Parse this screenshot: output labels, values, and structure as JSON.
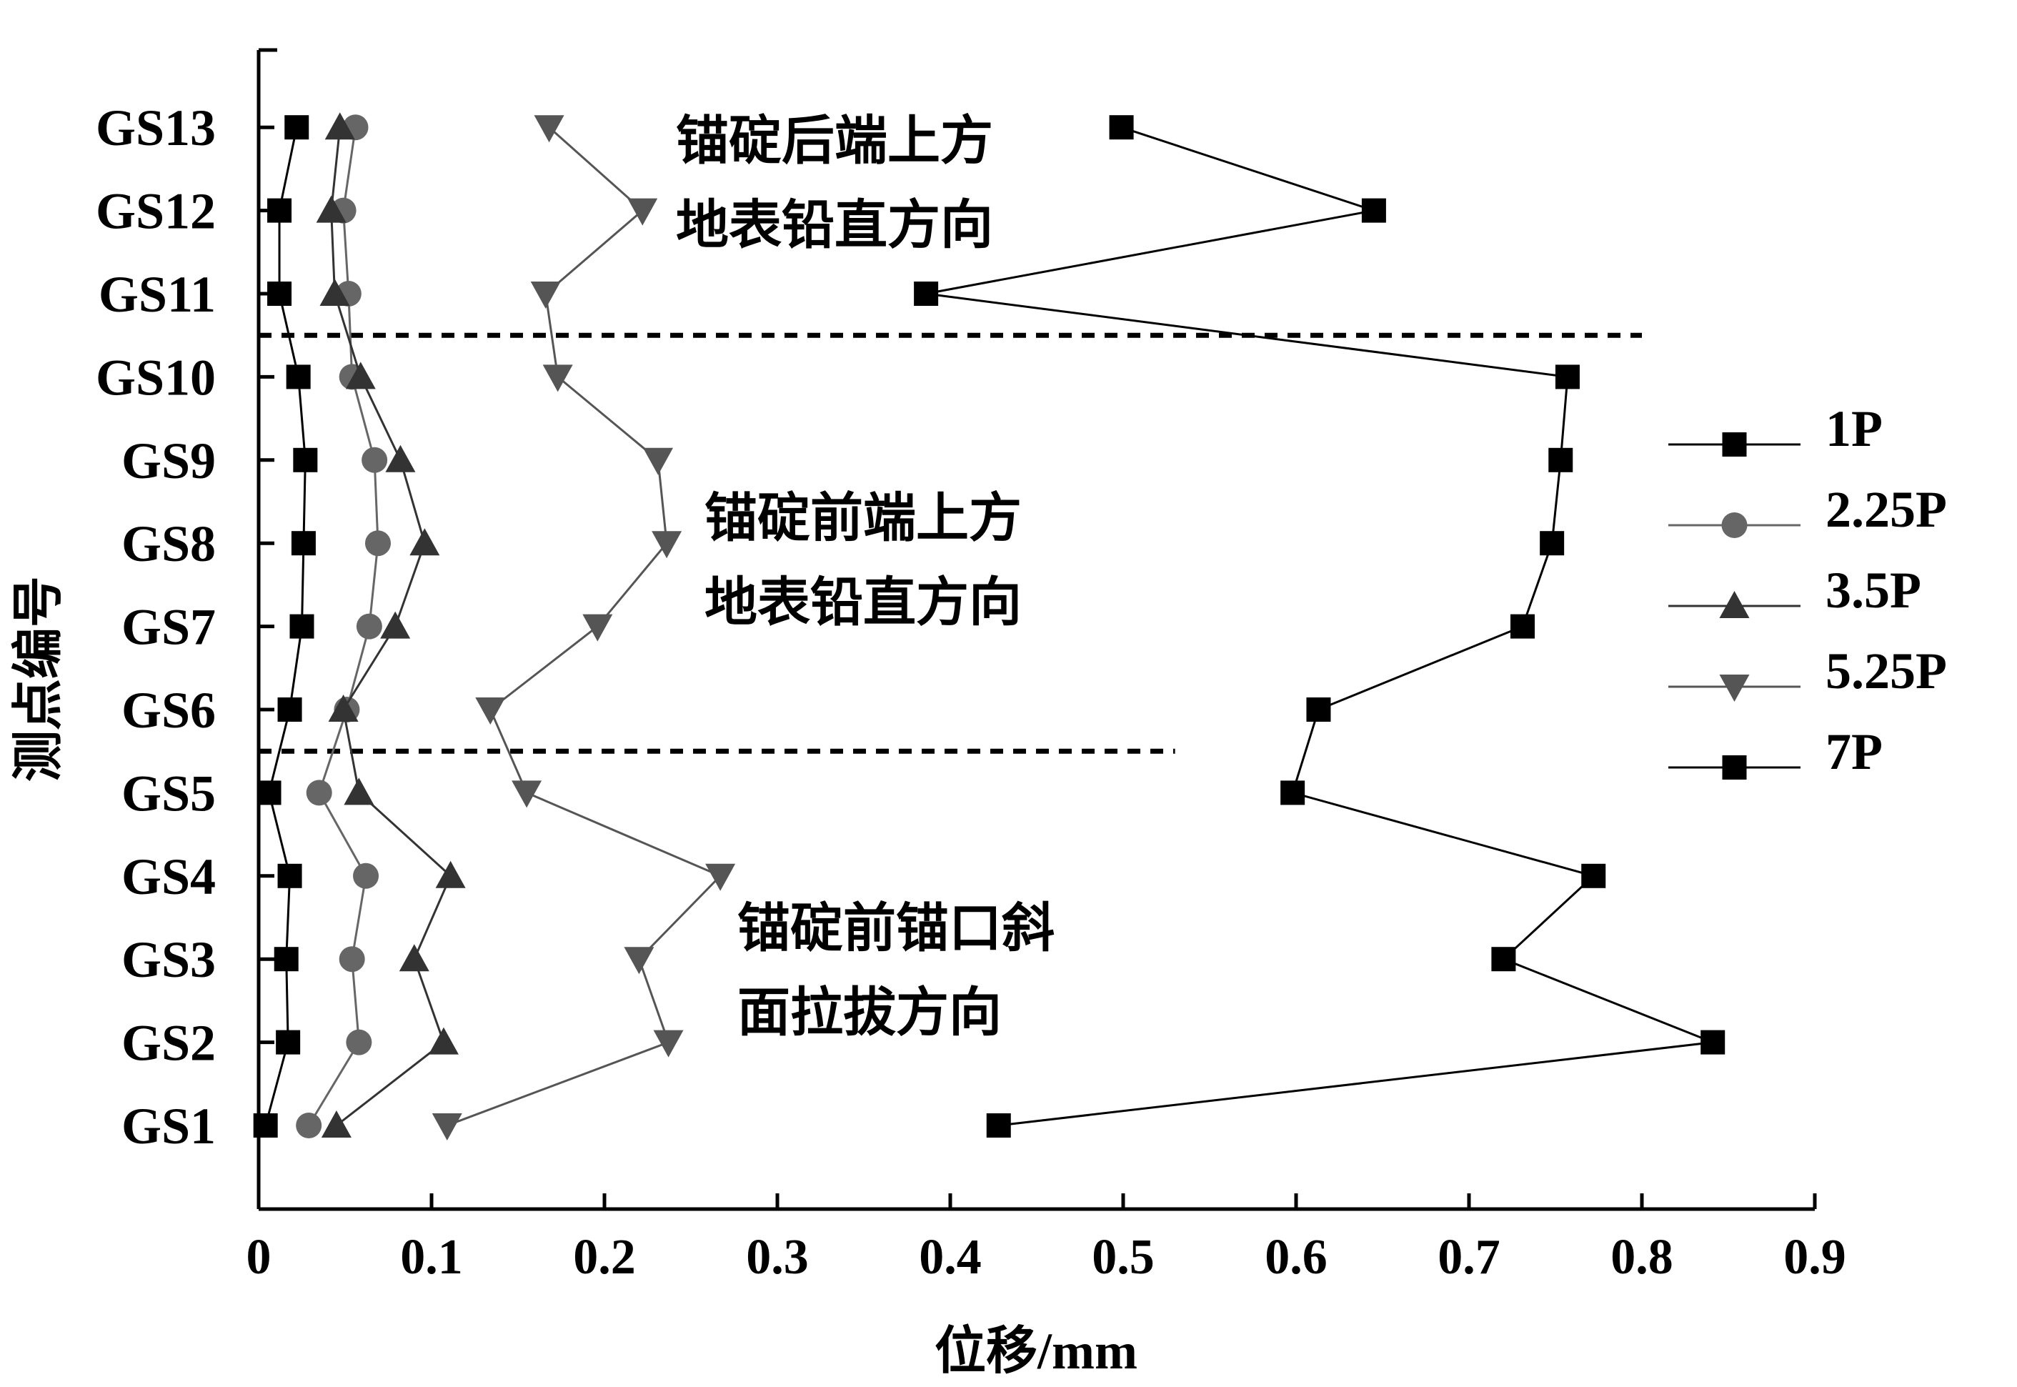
{
  "chart_data": {
    "type": "line",
    "xlabel": "位移/mm",
    "ylabel": "测点编号",
    "xlim": [
      0,
      0.9
    ],
    "x_ticks": [
      0,
      0.1,
      0.2,
      0.3,
      0.4,
      0.5,
      0.6,
      0.7,
      0.8,
      0.9
    ],
    "x_tick_labels": [
      "0",
      "0.1",
      "0.2",
      "0.3",
      "0.4",
      "0.5",
      "0.6",
      "0.7",
      "0.8",
      "0.9"
    ],
    "categories": [
      "GS1",
      "GS2",
      "GS3",
      "GS4",
      "GS5",
      "GS6",
      "GS7",
      "GS8",
      "GS9",
      "GS10",
      "GS11",
      "GS12",
      "GS13"
    ],
    "grid": false,
    "legend_position": "right",
    "series": [
      {
        "name": "1P",
        "marker": "square",
        "color": "#000000",
        "values": [
          0.004,
          0.017,
          0.016,
          0.018,
          0.006,
          0.018,
          0.025,
          0.026,
          0.027,
          0.023,
          0.012,
          0.012,
          0.022
        ]
      },
      {
        "name": "2.25P",
        "marker": "circle",
        "color": "#666666",
        "values": [
          0.029,
          0.058,
          0.054,
          0.062,
          0.035,
          0.051,
          0.064,
          0.069,
          0.067,
          0.054,
          0.052,
          0.049,
          0.056
        ]
      },
      {
        "name": "3.5P",
        "marker": "triangle-up",
        "color": "#333333",
        "values": [
          0.045,
          0.107,
          0.09,
          0.111,
          0.058,
          0.049,
          0.079,
          0.096,
          0.082,
          0.059,
          0.044,
          0.042,
          0.047
        ]
      },
      {
        "name": "5.25P",
        "marker": "triangle-down",
        "color": "#555555",
        "values": [
          0.109,
          0.237,
          0.22,
          0.267,
          0.155,
          0.134,
          0.196,
          0.236,
          0.231,
          0.173,
          0.166,
          0.222,
          0.168
        ]
      },
      {
        "name": "7P",
        "marker": "square",
        "color": "#000000",
        "values": [
          0.428,
          0.841,
          0.72,
          0.772,
          0.598,
          0.613,
          0.731,
          0.748,
          0.753,
          0.757,
          0.386,
          0.645,
          0.499
        ]
      }
    ],
    "dividers": [
      {
        "between": [
          "GS10",
          "GS11"
        ],
        "x_range": [
          0,
          0.8
        ]
      },
      {
        "between": [
          "GS5",
          "GS6"
        ],
        "x_range": [
          0,
          0.53
        ]
      }
    ],
    "annotations": [
      {
        "lines": [
          "锚碇后端上方",
          "地表铅直方向"
        ]
      },
      {
        "lines": [
          "锚碇前端上方",
          "地表铅直方向"
        ]
      },
      {
        "lines": [
          "锚碇前锚口斜",
          "面拉拔方向"
        ]
      }
    ]
  }
}
